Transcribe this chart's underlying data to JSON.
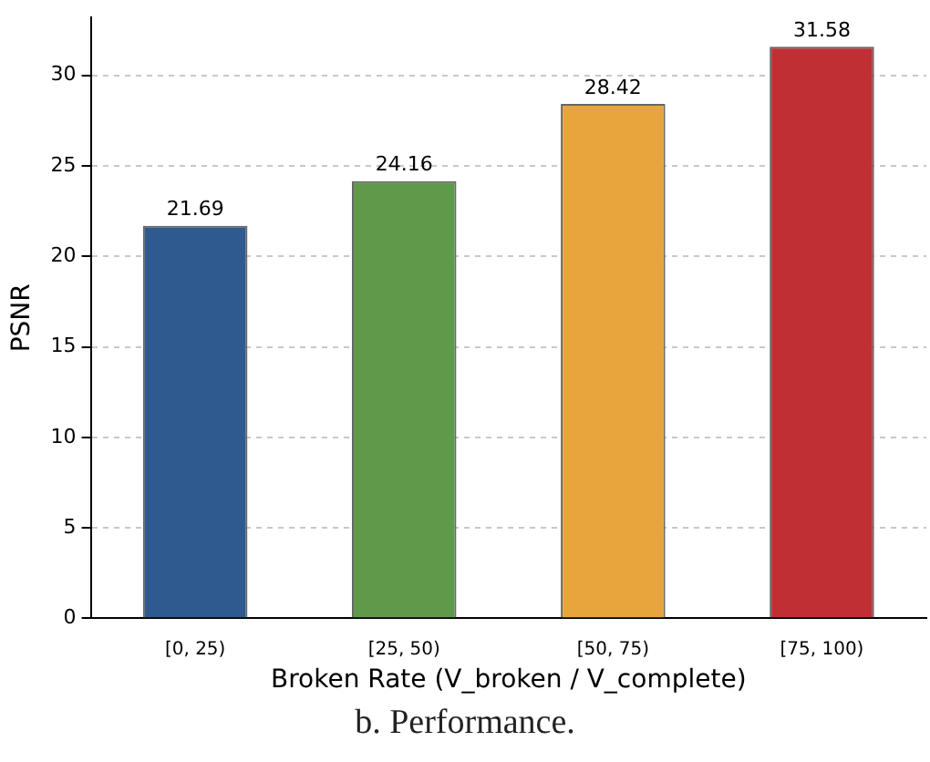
{
  "chart_data": {
    "type": "bar",
    "xlabel": "Broken Rate (V_broken / V_complete)",
    "ylabel": "PSNR",
    "categories": [
      "[0, 25)",
      "[25, 50)",
      "[50, 75)",
      "[75, 100)"
    ],
    "values": [
      21.69,
      24.16,
      28.42,
      31.58
    ],
    "colors": [
      "#2e5a8f",
      "#5f9a4b",
      "#e8a53e",
      "#bf2f33"
    ],
    "ylim": [
      0,
      33.2
    ],
    "yticks": [
      0,
      5,
      10,
      15,
      20,
      25,
      30
    ],
    "grid": "y",
    "data_labels": true,
    "annotations": [
      "b. Performance."
    ]
  }
}
